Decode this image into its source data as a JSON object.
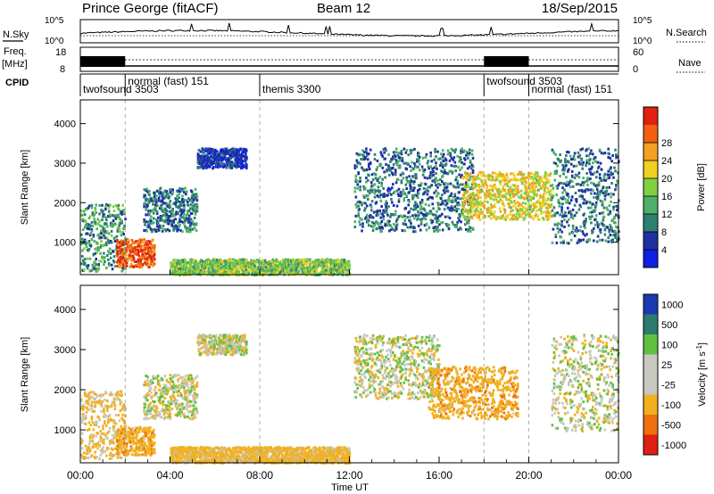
{
  "header": {
    "station": "Prince George (fitACF)",
    "beam": "Beam 12",
    "date": "18/Sep/2015"
  },
  "noise_panel": {
    "left_label": "N.Sky",
    "right_label": "N.Search",
    "left_ticks": [
      "10^5",
      "10^0"
    ],
    "right_ticks": [
      "10^5",
      "10^0"
    ]
  },
  "freq_panel": {
    "left_label_line1": "Freq.",
    "left_label_line2": "[MHz]",
    "right_label": "Nave",
    "left_ticks": [
      "18",
      "8"
    ],
    "right_ticks": [
      "60",
      "0"
    ]
  },
  "cpid_panel": {
    "label": "CPID",
    "modes": [
      {
        "name": "twofsound 3503",
        "start_h": 0.0
      },
      {
        "name": "normal (fast) 151",
        "start_h": 2.0
      },
      {
        "name": "themis 3300",
        "start_h": 8.0
      },
      {
        "name": "twofsound 3503",
        "start_h": 18.0
      },
      {
        "name": "normal (fast) 151",
        "start_h": 20.0
      }
    ]
  },
  "x_axis": {
    "title": "Time UT",
    "ticks": [
      "00:00",
      "04:00",
      "08:00",
      "12:00",
      "16:00",
      "20:00",
      "00:00"
    ]
  },
  "power_panel": {
    "ylabel": "Slant Range [km]",
    "yticks": [
      "1000",
      "2000",
      "3000",
      "4000"
    ],
    "colorbar_label": "Power [dB]",
    "colorbar_ticks": [
      "4",
      "8",
      "12",
      "16",
      "20",
      "24",
      "28"
    ],
    "colors": [
      "#1020e0",
      "#2030a0",
      "#2f7f70",
      "#4fb068",
      "#80d040",
      "#f0d020",
      "#f5a020",
      "#f06010",
      "#e02010"
    ]
  },
  "velocity_panel": {
    "ylabel": "Slant Range [km]",
    "yticks": [
      "1000",
      "2000",
      "3000",
      "4000"
    ],
    "colorbar_label": "Velocity [m s^-1]",
    "colorbar_ticks": [
      "1000",
      "500",
      "100",
      "25",
      "-25",
      "-100",
      "-500",
      "-1000"
    ],
    "colors": [
      "#1a3ab0",
      "#2c7a70",
      "#60c040",
      "#c8c8c0",
      "#c8c8c0",
      "#f0b020",
      "#f07010",
      "#e02010"
    ]
  },
  "chart_data": [
    {
      "type": "heatmap",
      "title": "Power [dB]",
      "xlabel": "Time UT",
      "ylabel": "Slant Range [km]",
      "xlim_hours": [
        0,
        24
      ],
      "ylim": [
        180,
        4600
      ],
      "clim": [
        0,
        30
      ],
      "grid": false,
      "features": [
        {
          "t_start": 0.0,
          "t_end": 2.0,
          "r_min": 300,
          "r_max": 2000,
          "typical_db": 10
        },
        {
          "t_start": 1.6,
          "t_end": 3.3,
          "r_min": 400,
          "r_max": 1100,
          "typical_db": 26
        },
        {
          "t_start": 2.8,
          "t_end": 5.2,
          "r_min": 1300,
          "r_max": 2400,
          "typical_db": 8
        },
        {
          "t_start": 5.2,
          "t_end": 7.4,
          "r_min": 2900,
          "r_max": 3400,
          "typical_db": 4
        },
        {
          "t_start": 4.0,
          "t_end": 12.0,
          "r_min": 200,
          "r_max": 600,
          "typical_db": 14
        },
        {
          "t_start": 12.2,
          "t_end": 17.5,
          "r_min": 1300,
          "r_max": 3400,
          "typical_db": 8
        },
        {
          "t_start": 17.0,
          "t_end": 21.0,
          "r_min": 1600,
          "r_max": 2800,
          "typical_db": 18
        },
        {
          "t_start": 21.0,
          "t_end": 24.0,
          "r_min": 1000,
          "r_max": 3400,
          "typical_db": 8
        }
      ]
    },
    {
      "type": "heatmap",
      "title": "Velocity [m s^-1]",
      "xlabel": "Time UT",
      "ylabel": "Slant Range [km]",
      "xlim_hours": [
        0,
        24
      ],
      "ylim": [
        180,
        4600
      ],
      "clim": [
        -1000,
        1000
      ],
      "grid": false,
      "features": [
        {
          "t_start": 0.0,
          "t_end": 2.0,
          "r_min": 300,
          "r_max": 2000,
          "typical_velocity": -100
        },
        {
          "t_start": 1.6,
          "t_end": 3.3,
          "r_min": 400,
          "r_max": 1100,
          "typical_velocity": -200
        },
        {
          "t_start": 2.8,
          "t_end": 5.2,
          "r_min": 1300,
          "r_max": 2400,
          "typical_velocity": 0
        },
        {
          "t_start": 5.2,
          "t_end": 7.4,
          "r_min": 2900,
          "r_max": 3400,
          "typical_velocity": 0
        },
        {
          "t_start": 4.0,
          "t_end": 12.0,
          "r_min": 200,
          "r_max": 600,
          "typical_velocity": -150
        },
        {
          "t_start": 12.2,
          "t_end": 16.0,
          "r_min": 1800,
          "r_max": 3400,
          "typical_velocity": 0
        },
        {
          "t_start": 15.5,
          "t_end": 19.5,
          "r_min": 1300,
          "r_max": 2600,
          "typical_velocity": -200
        },
        {
          "t_start": 21.0,
          "t_end": 24.0,
          "r_min": 1000,
          "r_max": 3400,
          "typical_velocity": 0
        }
      ]
    }
  ]
}
